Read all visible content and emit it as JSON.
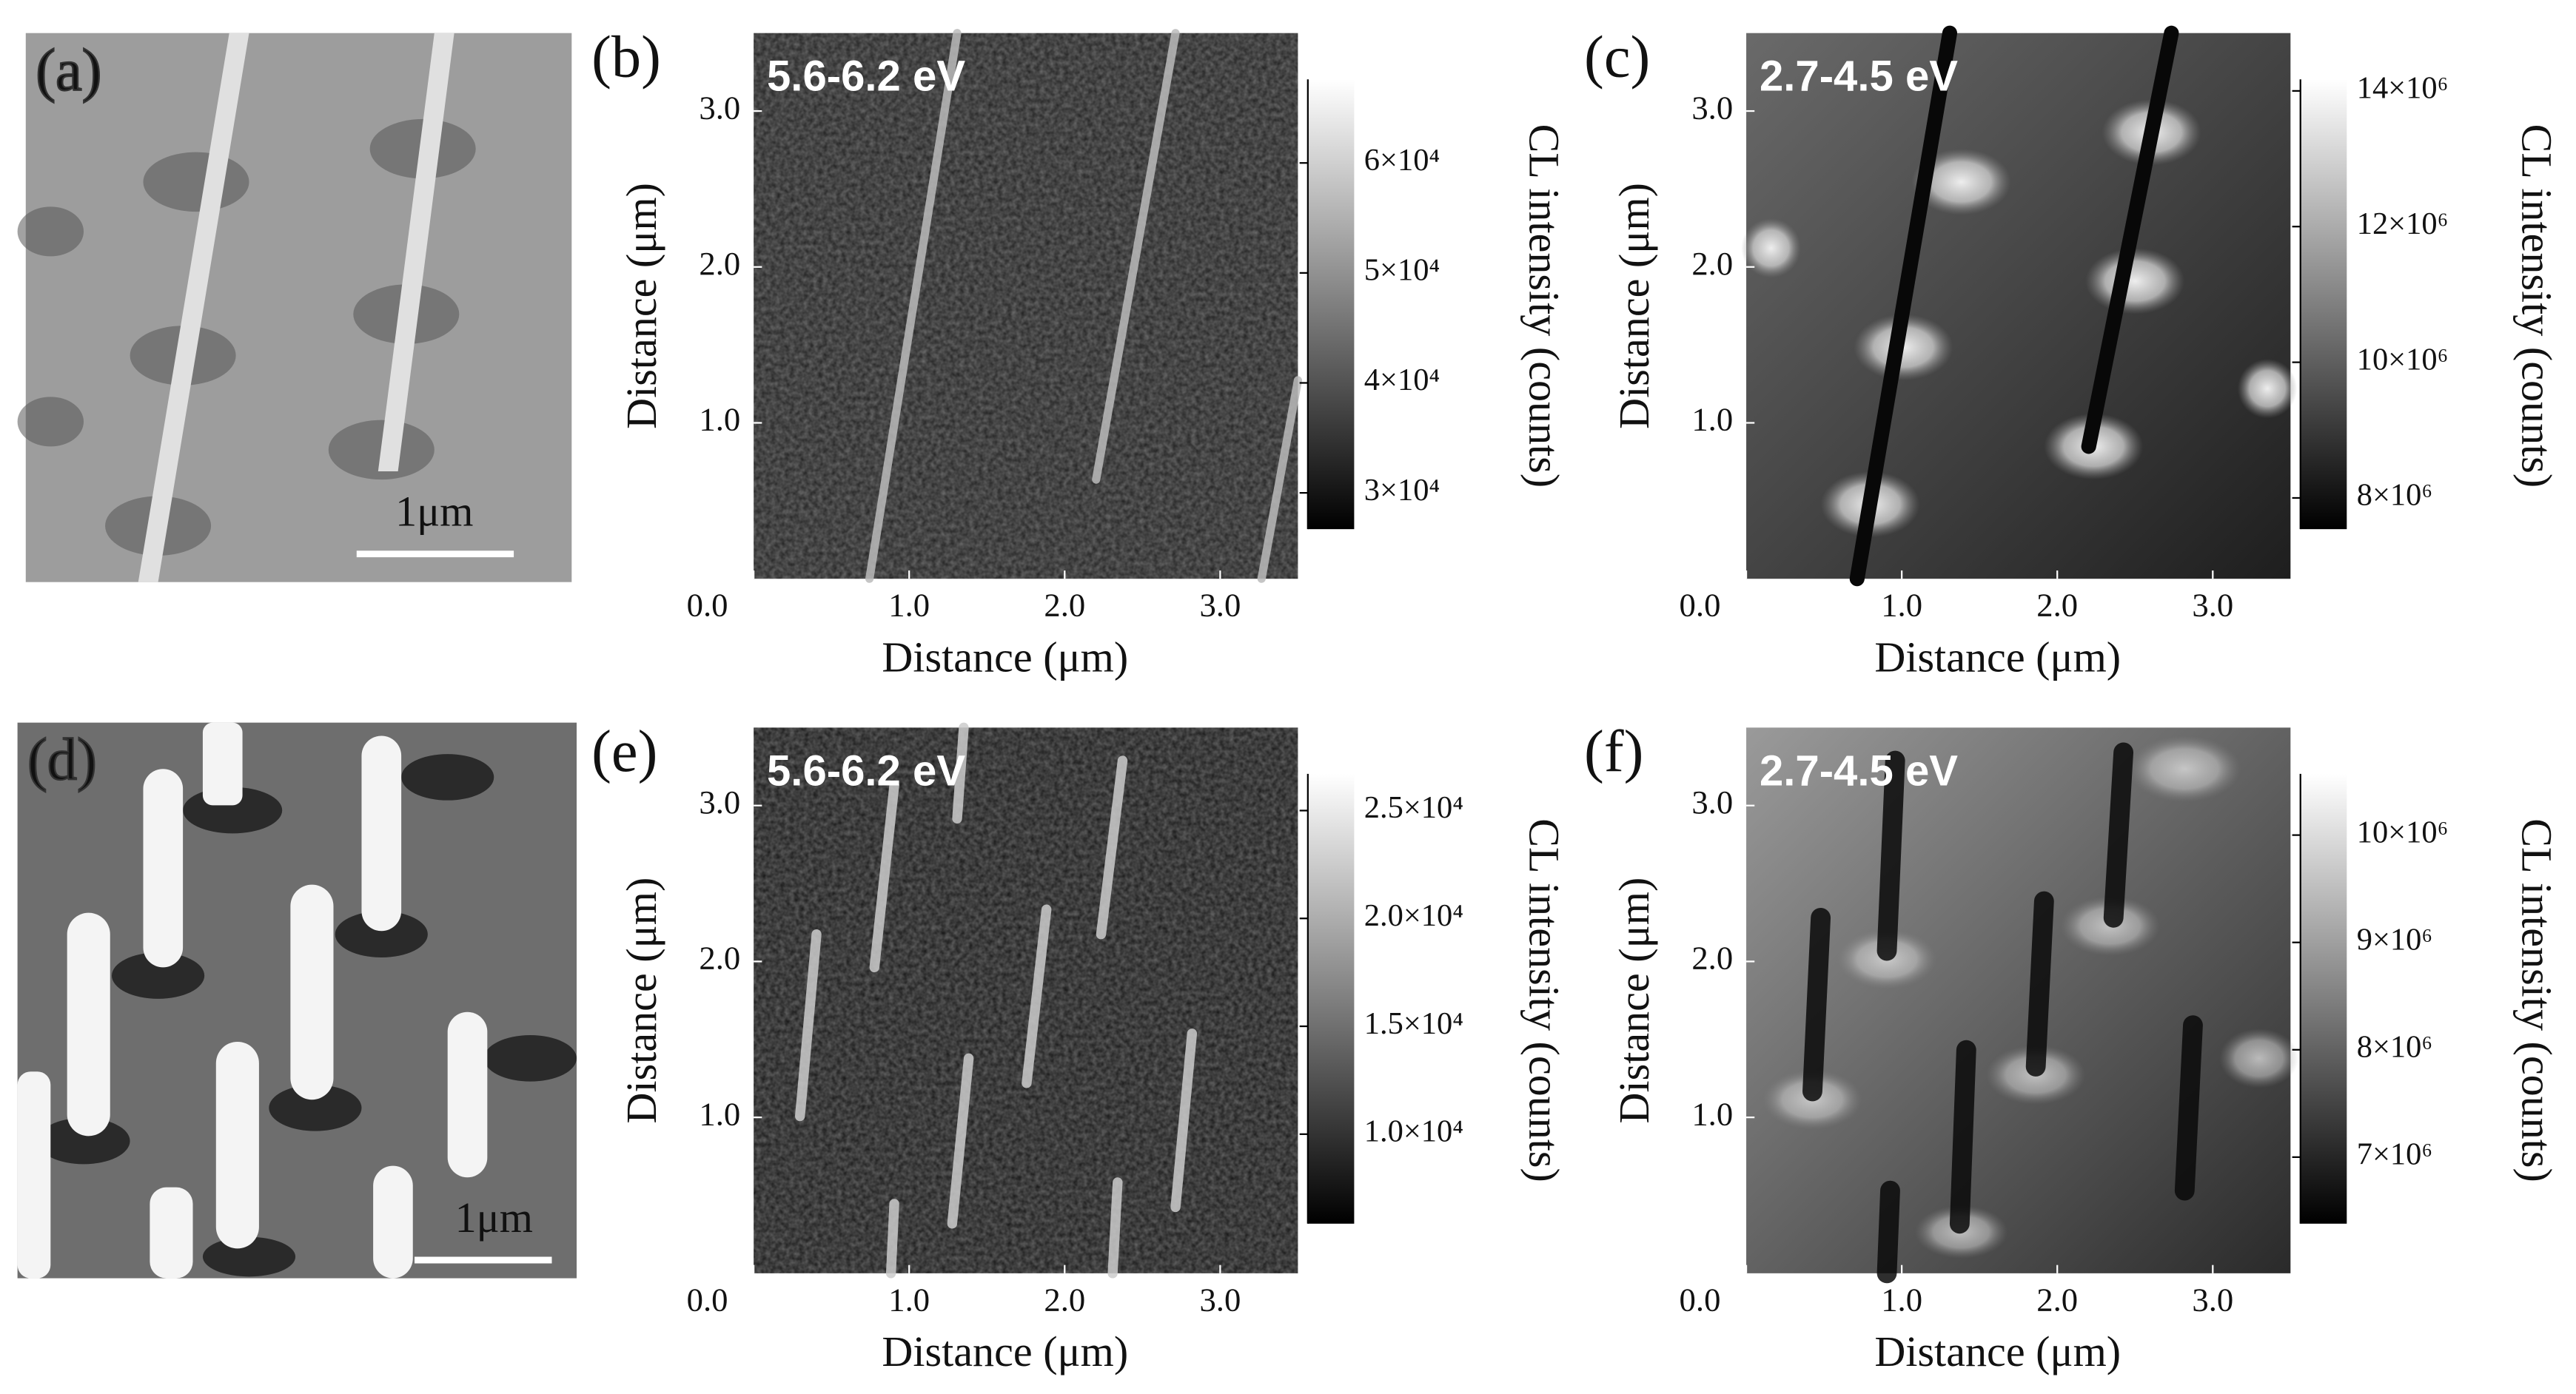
{
  "panels": [
    {
      "label": "(a)",
      "scale_bar": "1μm"
    },
    {
      "label": "(b)",
      "energy": "5.6-6.2 eV",
      "x_label": "Distance (μm)",
      "y_label": "Distance (μm)",
      "xlim": [
        0,
        3.5
      ],
      "ylim": [
        0,
        3.5
      ],
      "xticks": [
        {
          "value": 0,
          "label": "0.0"
        },
        {
          "value": 1,
          "label": "1.0"
        },
        {
          "value": 2,
          "label": "2.0"
        },
        {
          "value": 3,
          "label": "3.0"
        }
      ],
      "yticks": [
        {
          "value": 1,
          "label": "1.0"
        },
        {
          "value": 2,
          "label": "2.0"
        },
        {
          "value": 3,
          "label": "3.0"
        }
      ],
      "colorbar": {
        "label": "CL intensity (counts)",
        "lim": [
          26700,
          67600
        ],
        "ticks": [
          {
            "value": 30000,
            "label": "3×10⁴"
          },
          {
            "value": 40000,
            "label": "4×10⁴"
          },
          {
            "value": 50000,
            "label": "5×10⁴"
          },
          {
            "value": 60000,
            "label": "6×10⁴"
          }
        ]
      }
    },
    {
      "label": "(c)",
      "energy": "2.7-4.5 eV",
      "x_label": "Distance (μm)",
      "y_label": "Distance (μm)",
      "xlim": [
        0,
        3.5
      ],
      "ylim": [
        0,
        3.5
      ],
      "xticks": [
        {
          "value": 0,
          "label": "0.0"
        },
        {
          "value": 1,
          "label": "1.0"
        },
        {
          "value": 2,
          "label": "2.0"
        },
        {
          "value": 3,
          "label": "3.0"
        }
      ],
      "yticks": [
        {
          "value": 1,
          "label": "1.0"
        },
        {
          "value": 2,
          "label": "2.0"
        },
        {
          "value": 3,
          "label": "3.0"
        }
      ],
      "colorbar": {
        "label": "CL intensity (counts)",
        "lim": [
          7540000,
          14170000
        ],
        "ticks": [
          {
            "value": 8000000,
            "label": "8×10⁶"
          },
          {
            "value": 10000000,
            "label": "10×10⁶"
          },
          {
            "value": 12000000,
            "label": "12×10⁶"
          },
          {
            "value": 14000000,
            "label": "14×10⁶"
          }
        ]
      }
    },
    {
      "label": "(d)",
      "scale_bar": "1μm"
    },
    {
      "label": "(e)",
      "energy": "5.6-6.2 eV",
      "x_label": "Distance (μm)",
      "y_label": "Distance (μm)",
      "xlim": [
        0,
        3.5
      ],
      "ylim": [
        0,
        3.5
      ],
      "xticks": [
        {
          "value": 0,
          "label": "0.0"
        },
        {
          "value": 1,
          "label": "1.0"
        },
        {
          "value": 2,
          "label": "2.0"
        },
        {
          "value": 3,
          "label": "3.0"
        }
      ],
      "yticks": [
        {
          "value": 1,
          "label": "1.0"
        },
        {
          "value": 2,
          "label": "2.0"
        },
        {
          "value": 3,
          "label": "3.0"
        }
      ],
      "colorbar": {
        "label": "CL intensity (counts)",
        "lim": [
          5850,
          26700
        ],
        "ticks": [
          {
            "value": 10000,
            "label": "1.0×10⁴"
          },
          {
            "value": 15000,
            "label": "1.5×10⁴"
          },
          {
            "value": 20000,
            "label": "2.0×10⁴"
          },
          {
            "value": 25000,
            "label": "2.5×10⁴"
          }
        ]
      }
    },
    {
      "label": "(f)",
      "energy": "2.7-4.5 eV",
      "x_label": "Distance (μm)",
      "y_label": "Distance (μm)",
      "xlim": [
        0,
        3.5
      ],
      "ylim": [
        0,
        3.5
      ],
      "xticks": [
        {
          "value": 0,
          "label": "0.0"
        },
        {
          "value": 1,
          "label": "1.0"
        },
        {
          "value": 2,
          "label": "2.0"
        },
        {
          "value": 3,
          "label": "3.0"
        }
      ],
      "yticks": [
        {
          "value": 1,
          "label": "1.0"
        },
        {
          "value": 2,
          "label": "2.0"
        },
        {
          "value": 3,
          "label": "3.0"
        }
      ],
      "colorbar": {
        "label": "CL intensity (counts)",
        "lim": [
          6380000,
          10570000
        ],
        "ticks": [
          {
            "value": 7000000,
            "label": "7×10⁶"
          },
          {
            "value": 8000000,
            "label": "8×10⁶"
          },
          {
            "value": 9000000,
            "label": "9×10⁶"
          },
          {
            "value": 10000000,
            "label": "10×10⁶"
          }
        ]
      }
    }
  ]
}
